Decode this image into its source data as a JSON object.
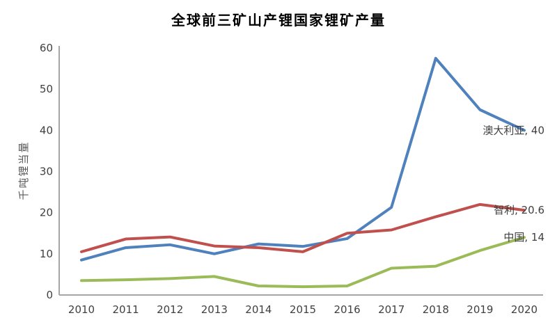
{
  "title": "全球前三矿山产锂国家锂矿产量",
  "chart_data": {
    "type": "line",
    "title": "全球前三矿山产锂国家锂矿产量",
    "ylabel": "千吨锂当量",
    "xlabel": "",
    "categories": [
      "2010",
      "2011",
      "2012",
      "2013",
      "2014",
      "2015",
      "2016",
      "2017",
      "2018",
      "2019",
      "2020"
    ],
    "ylim": [
      0,
      60
    ],
    "yticks": [
      "0",
      "10",
      "20",
      "30",
      "40",
      "50",
      "60"
    ],
    "grid": false,
    "legend_position": "end-of-line-labels",
    "series": [
      {
        "name": "澳大利亚",
        "end_label": "澳大利亚, 40",
        "color": "#4F81BD",
        "values": [
          8.5,
          11.5,
          12.2,
          10,
          12.4,
          11.8,
          13.7,
          21.3,
          57.5,
          45,
          40
        ]
      },
      {
        "name": "智利",
        "end_label": "智利, 20.6",
        "color": "#C0504D",
        "values": [
          10.5,
          13.6,
          14.1,
          11.9,
          11.5,
          10.5,
          15,
          15.8,
          19,
          22,
          20.6
        ]
      },
      {
        "name": "中国",
        "end_label": "中国, 14",
        "color": "#9BBB59",
        "values": [
          3.5,
          3.7,
          4,
          4.5,
          2.2,
          2,
          2.2,
          6.5,
          7,
          10.8,
          14
        ]
      }
    ],
    "colors": {
      "axis": "#A6A6A6",
      "tick_text": "#404040",
      "series_label_text": "#3F3F3F",
      "title_text": "#000000",
      "y_axis_title_text": "#595959",
      "background": "#FFFFFF"
    }
  }
}
